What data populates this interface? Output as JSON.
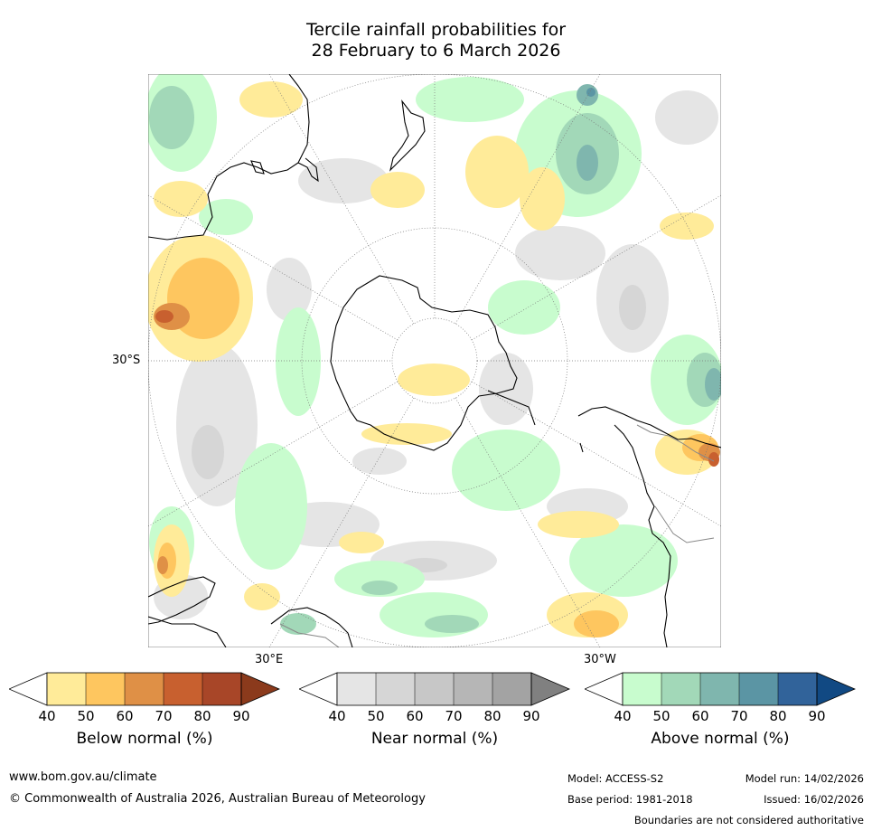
{
  "title": {
    "line1": "Tercile rainfall probabilities for",
    "line2": "28 February to 6 March 2026"
  },
  "axis_labels": {
    "left": "30°S",
    "bottom_left": "30°E",
    "bottom_right": "30°W"
  },
  "map_colors": {
    "land_outline": "#000000",
    "border_outline": "#888888",
    "graticule": "#777777"
  },
  "colorbars": [
    {
      "name": "below",
      "title": "Below normal (%)",
      "ticks": [
        "40",
        "50",
        "60",
        "70",
        "80",
        "90"
      ],
      "low_color": "#ffffff",
      "colors": [
        "#ffeb99",
        "#fec65f",
        "#df9046",
        "#c8602f",
        "#a84628"
      ],
      "high_color": "#8b3a1c"
    },
    {
      "name": "near",
      "title": "Near normal (%)",
      "ticks": [
        "40",
        "50",
        "60",
        "70",
        "80",
        "90"
      ],
      "low_color": "#ffffff",
      "colors": [
        "#e5e5e5",
        "#d6d6d6",
        "#c7c7c7",
        "#b6b6b6",
        "#a3a3a3"
      ],
      "high_color": "#808080"
    },
    {
      "name": "above",
      "title": "Above normal (%)",
      "ticks": [
        "40",
        "50",
        "60",
        "70",
        "80",
        "90"
      ],
      "low_color": "#ffffff",
      "colors": [
        "#c8fcce",
        "#a2d8b8",
        "#7fb6ae",
        "#5b95a4",
        "#31639a"
      ],
      "high_color": "#114983"
    }
  ],
  "footer": {
    "website": "www.bom.gov.au/climate",
    "copyright": "© Commonwealth of Australia 2026, Australian Bureau of Meteorology",
    "model": "Model: ACCESS-S2",
    "base_period": "Base period: 1981-2018",
    "model_run": "Model run: 14/02/2026",
    "issued": "Issued: 16/02/2026",
    "disclaimer": "Boundaries are not considered authoritative"
  }
}
